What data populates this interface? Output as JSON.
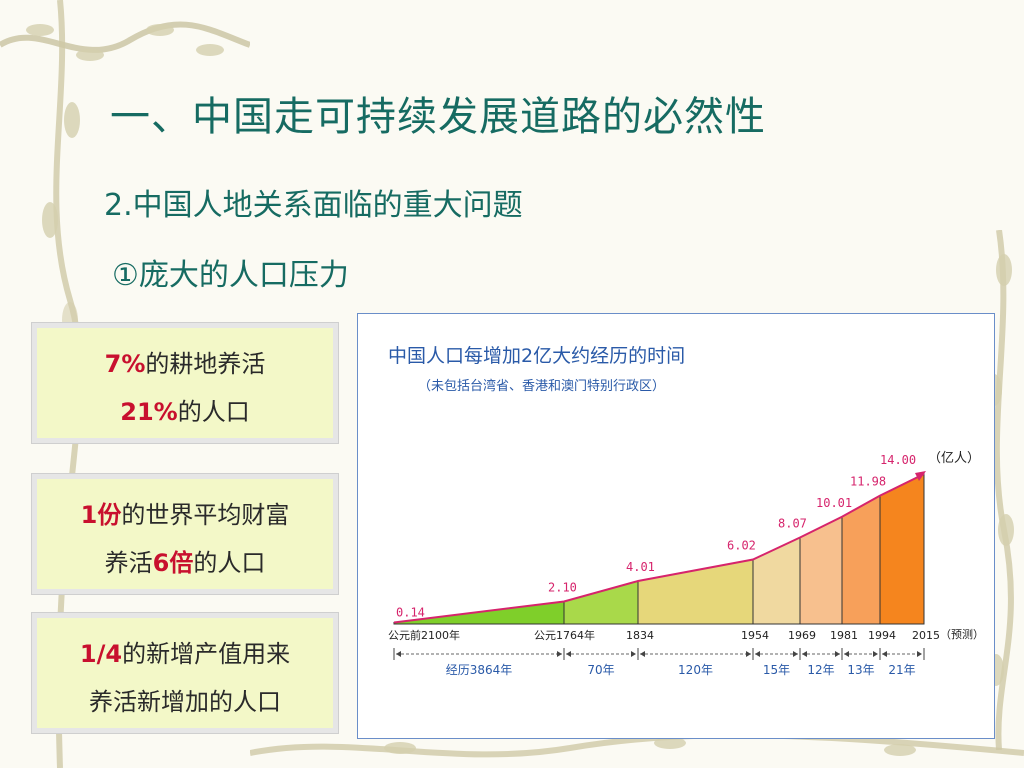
{
  "slide": {
    "title": "一、中国走可持续发展道路的必然性",
    "subtitle": "2.中国人地关系面临的重大问题",
    "point": "①庞大的人口压力"
  },
  "boxes": [
    {
      "line1_hl": "7%",
      "line1": "的耕地养活",
      "line2_hl": "21%",
      "line2": "的人口"
    },
    {
      "line1_hl": "1份",
      "line1": "的世界平均财富",
      "line2_pre": "养活",
      "line2_hl": "6倍",
      "line2": "的人口"
    },
    {
      "line1_hl": "1/4",
      "line1": "的新增产值用来",
      "line2": "养活新增加的人口"
    }
  ],
  "chart_data": {
    "type": "area",
    "title": "中国人口每增加2亿大约经历的时间",
    "subtitle": "（未包括台湾省、香港和澳门特别行政区）",
    "unit_label": "（亿人）",
    "forecast_label": "（预测）",
    "x_labels": [
      "公元前2100年",
      "公元1764年",
      "1834",
      "1954",
      "1969",
      "1981",
      "1994",
      "2015"
    ],
    "values": [
      0.14,
      2.1,
      4.01,
      6.02,
      8.07,
      10.01,
      11.98,
      14.0
    ],
    "value_labels": [
      "0.14",
      "2.10",
      "4.01",
      "6.02",
      "8.07",
      "10.01",
      "11.98",
      "14.00"
    ],
    "intervals": [
      "经历3864年",
      "70年",
      "120年",
      "15年",
      "12年",
      "13年",
      "21年"
    ],
    "colors": {
      "segments": [
        "#7fcf2a",
        "#a9d94a",
        "#e6d77a",
        "#f0d9a0",
        "#f7c08e",
        "#f7a05a",
        "#f5851e"
      ],
      "line": "#d6246c"
    }
  }
}
